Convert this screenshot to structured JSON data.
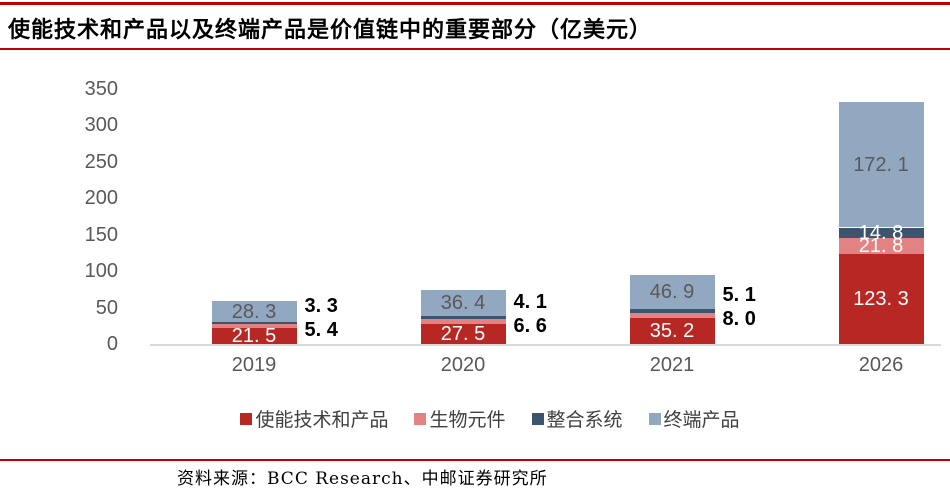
{
  "title": "使能技术和产品以及终端产品是价值链中的重要部分（亿美元）",
  "source": "资料来源：BCC Research、中邮证券研究所",
  "colors": {
    "accent_rule": "#c00000",
    "axis_text": "#595959",
    "baseline": "#d9d9d9",
    "inside_light_label": "#ffffff",
    "inside_dark_label": "#595959",
    "outside_label": "#000000"
  },
  "chart_data": {
    "type": "bar",
    "stacked": true,
    "title": "使能技术和产品以及终端产品是价值链中的重要部分（亿美元）",
    "categories": [
      "2019",
      "2020",
      "2021",
      "2026"
    ],
    "series": [
      {
        "name": "使能技术和产品",
        "color": "#b72825",
        "values": [
          21.5,
          27.5,
          35.2,
          123.3
        ]
      },
      {
        "name": "生物元件",
        "color": "#e28282",
        "values": [
          5.4,
          6.6,
          8.0,
          21.8
        ]
      },
      {
        "name": "整合系统",
        "color": "#3c546d",
        "values": [
          3.3,
          4.1,
          5.1,
          14.8
        ]
      },
      {
        "name": "终端产品",
        "color": "#92a8c1",
        "values": [
          28.3,
          36.4,
          46.9,
          172.1
        ]
      }
    ],
    "totals": [
      58.5,
      74.6,
      95.2,
      332.0
    ],
    "xlabel": "",
    "ylabel": "",
    "ylim": [
      0,
      350
    ],
    "yticks": [
      0,
      50,
      100,
      150,
      200,
      250,
      300,
      350
    ],
    "grid": false,
    "legend_position": "bottom"
  }
}
